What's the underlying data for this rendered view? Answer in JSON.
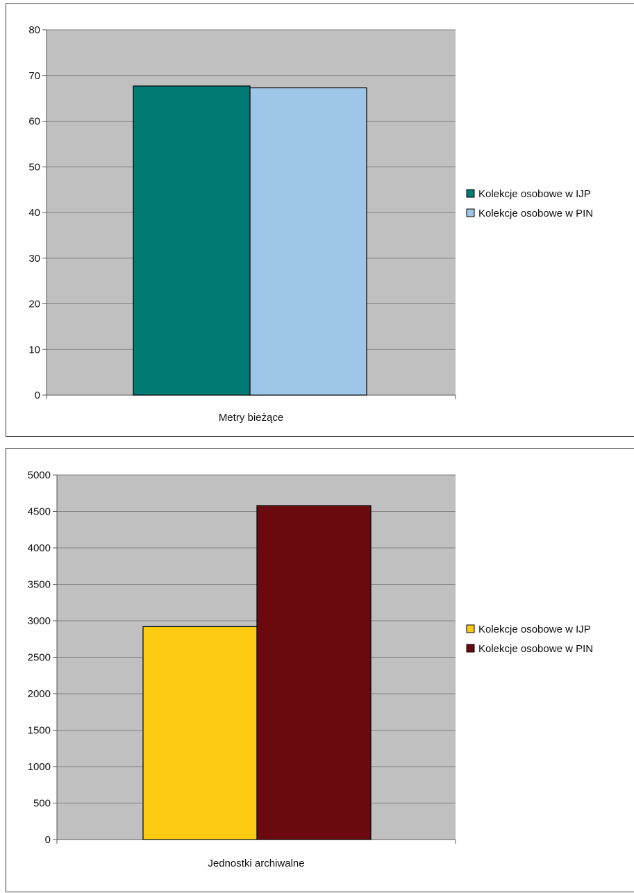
{
  "chart_data": [
    {
      "type": "bar",
      "categories": [
        "Metry bieżące"
      ],
      "series": [
        {
          "name": "Kolekcje osobowe w IJP",
          "values": [
            67.7
          ],
          "color": "#007a72"
        },
        {
          "name": "Kolekcje osobowe w PIN",
          "values": [
            67.3
          ],
          "color": "#9ec6e8"
        }
      ],
      "ylim": [
        0,
        80
      ],
      "yticks": [
        0,
        10,
        20,
        30,
        40,
        50,
        60,
        70,
        80
      ],
      "grid": true,
      "legend": "right",
      "plot_background": "#c0c0c0"
    },
    {
      "type": "bar",
      "categories": [
        "Jednostki archiwalne"
      ],
      "series": [
        {
          "name": "Kolekcje osobowe w IJP",
          "values": [
            2920
          ],
          "color": "#fccb12"
        },
        {
          "name": "Kolekcje osobowe w PIN",
          "values": [
            4580
          ],
          "color": "#6b0a0e"
        }
      ],
      "ylim": [
        0,
        5000
      ],
      "yticks": [
        0,
        500,
        1000,
        1500,
        2000,
        2500,
        3000,
        3500,
        4000,
        4500,
        5000
      ],
      "grid": true,
      "legend": "right",
      "plot_background": "#c0c0c0"
    }
  ]
}
